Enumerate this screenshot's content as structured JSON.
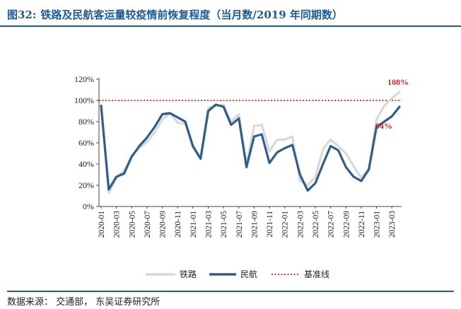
{
  "header": {
    "figure_no": "图32:",
    "title": "铁路及民航客运量较疫情前恢复程度（当月数/2019 年同期数）"
  },
  "source": "数据来源：  交通部，  东吴证券研究所",
  "colors": {
    "rail": "#d9d9d9",
    "air": "#2f5d8c",
    "baseline": "#c00000",
    "annotation": "#e02020",
    "accent": "#1f5a91"
  },
  "chart_data": {
    "type": "line",
    "x": [
      "2020-01",
      "2020-02",
      "2020-03",
      "2020-04",
      "2020-05",
      "2020-06",
      "2020-07",
      "2020-08",
      "2020-09",
      "2020-10",
      "2020-11",
      "2020-12",
      "2021-01",
      "2021-02",
      "2021-03",
      "2021-04",
      "2021-05",
      "2021-06",
      "2021-07",
      "2021-08",
      "2021-09",
      "2021-10",
      "2021-11",
      "2021-12",
      "2022-01",
      "2022-02",
      "2022-03",
      "2022-04",
      "2022-05",
      "2022-06",
      "2022-07",
      "2022-08",
      "2022-09",
      "2022-10",
      "2022-11",
      "2022-12",
      "2023-01",
      "2023-02",
      "2023-03",
      "2023-04"
    ],
    "xtick_labels": [
      "2020-01",
      "2020-03",
      "2020-05",
      "2020-07",
      "2020-09",
      "2020-11",
      "2021-01",
      "2021-03",
      "2021-05",
      "2021-07",
      "2021-09",
      "2021-11",
      "2022-01",
      "2022-03",
      "2022-05",
      "2022-07",
      "2022-09",
      "2022-11",
      "2023-01",
      "2023-03"
    ],
    "yticks": [
      "0%",
      "20%",
      "40%",
      "60%",
      "80%",
      "100%",
      "120%"
    ],
    "ylim": [
      0,
      120
    ],
    "series": [
      {
        "name": "铁路",
        "values": [
          95,
          13,
          27,
          34,
          48,
          55,
          61,
          70,
          82,
          88,
          79,
          78,
          55,
          46,
          93,
          95,
          96,
          80,
          87,
          40,
          76,
          77,
          52,
          63,
          63,
          66,
          24,
          20,
          28,
          54,
          63,
          57,
          50,
          38,
          27,
          36,
          82,
          95,
          102,
          108
        ]
      },
      {
        "name": "民航",
        "values": [
          95,
          16,
          28,
          31,
          47,
          57,
          65,
          75,
          87,
          88,
          84,
          80,
          57,
          45,
          90,
          96,
          94,
          77,
          83,
          37,
          66,
          68,
          41,
          51,
          55,
          58,
          30,
          15,
          22,
          40,
          57,
          53,
          37,
          28,
          24,
          35,
          75,
          80,
          85,
          94
        ]
      }
    ],
    "baseline": {
      "name": "基准线",
      "value": 100
    },
    "annotations": [
      {
        "text": "108%",
        "value": 108
      },
      {
        "text": "94%",
        "value": 94
      }
    ],
    "legend_position": "bottom"
  }
}
